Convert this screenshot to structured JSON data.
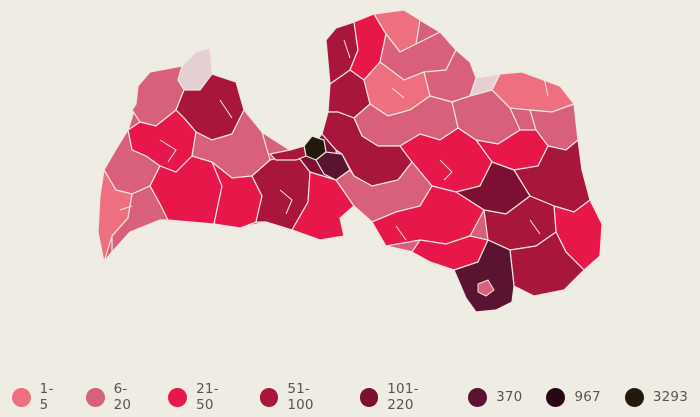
{
  "map": {
    "country": "Latvia",
    "border_color": "#efe6e2",
    "background": "#efede3"
  },
  "legend": {
    "items": [
      {
        "label": "1-5",
        "color": "#ee7080"
      },
      {
        "label": "6-20",
        "color": "#d9607a"
      },
      {
        "label": "21-50",
        "color": "#e8174a"
      },
      {
        "label": "51-100",
        "color": "#a8173b"
      },
      {
        "label": "101-220",
        "color": "#7c0f32"
      },
      {
        "label": "370",
        "color": "#5a1330"
      },
      {
        "label": "967",
        "color": "#2a0716"
      },
      {
        "label": "3293",
        "color": "#231a0c"
      }
    ]
  }
}
